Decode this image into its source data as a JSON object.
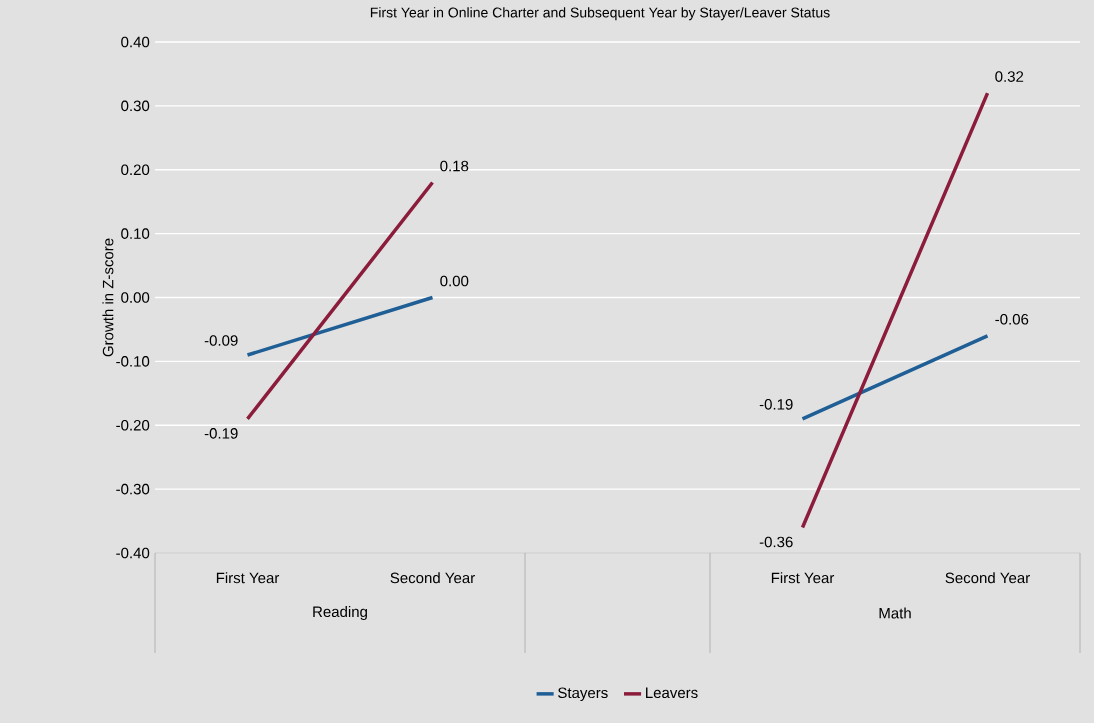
{
  "chart_data": {
    "type": "line",
    "title": "First Year in Online Charter and Subsequent Year by Stayer/Leaver Status",
    "ylabel": "Growth in Z-score",
    "categories": [
      "First Year",
      "Second Year",
      null,
      "First Year",
      "Second Year"
    ],
    "annotations": [
      "Reading",
      "Math"
    ],
    "series": [
      {
        "name": "Stayers",
        "color": "#1f5f96",
        "values": [
          -0.09,
          0.0,
          null,
          -0.19,
          -0.06
        ],
        "value_labels": [
          "-0.09",
          "0.00",
          null,
          "-0.19",
          "-0.06"
        ]
      },
      {
        "name": "Leavers",
        "color": "#8c1c3c",
        "values": [
          -0.19,
          0.18,
          null,
          -0.36,
          0.32
        ],
        "value_labels": [
          "-0.19",
          "0.18",
          null,
          "-0.36",
          "0.32"
        ]
      }
    ],
    "ylim": [
      -0.4,
      0.4
    ],
    "yticks": [
      {
        "value": -0.4,
        "label": "-0.40"
      },
      {
        "value": -0.3,
        "label": "-0.30"
      },
      {
        "value": -0.2,
        "label": "-0.20"
      },
      {
        "value": -0.1,
        "label": "-0.10"
      },
      {
        "value": 0,
        "label": "0.00"
      },
      {
        "value": 0.1,
        "label": "0.10"
      },
      {
        "value": 0.2,
        "label": "0.20"
      },
      {
        "value": 0.3,
        "label": "0.30"
      },
      {
        "value": 0.4,
        "label": "0.40"
      }
    ],
    "grid": "y",
    "legend": "bottom",
    "marker": "none",
    "line_style": "solid"
  }
}
